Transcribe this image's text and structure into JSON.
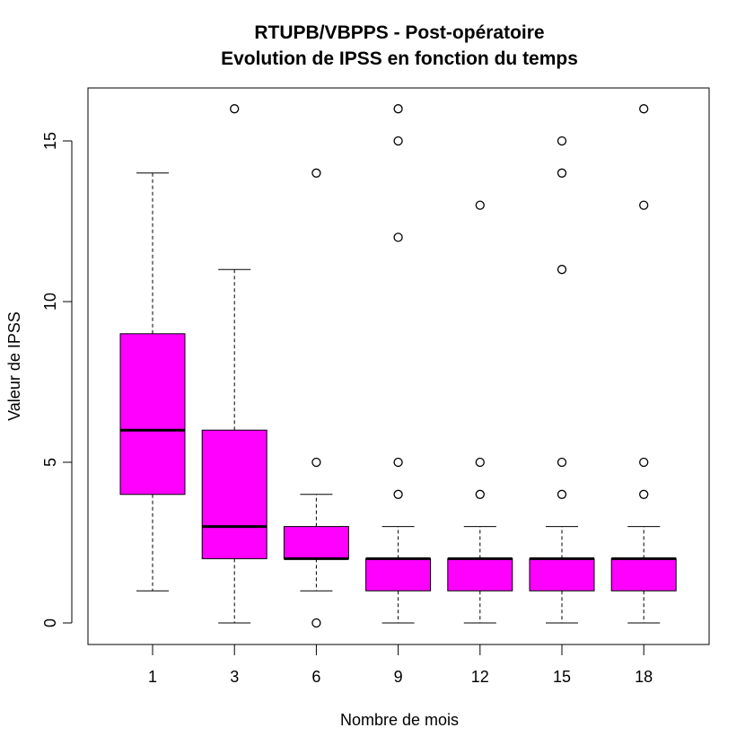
{
  "chart_data": {
    "type": "box",
    "title_line1": "RTUPB/VBPPS - Post-opératoire",
    "title_line2": "Evolution de IPSS en fonction du temps",
    "xlabel": "Nombre de mois",
    "ylabel": "Valeur de IPSS",
    "ylim": [
      -1.3,
      16.6
    ],
    "yticks": [
      0,
      5,
      10,
      15
    ],
    "box_color": "#ff00ff",
    "grid": false,
    "categories": [
      "1",
      "3",
      "6",
      "9",
      "12",
      "15",
      "18"
    ],
    "boxes": [
      {
        "category": "1",
        "whisker_low": 1,
        "q1": 4,
        "median": 6,
        "q3": 9,
        "whisker_high": 14,
        "outliers": []
      },
      {
        "category": "3",
        "whisker_low": 0,
        "q1": 2,
        "median": 3,
        "q3": 6,
        "whisker_high": 11,
        "outliers": [
          16
        ]
      },
      {
        "category": "6",
        "whisker_low": 1,
        "q1": 2,
        "median": 2,
        "q3": 3,
        "whisker_high": 4,
        "outliers": [
          0,
          5,
          14
        ]
      },
      {
        "category": "9",
        "whisker_low": 0,
        "q1": 1,
        "median": 2,
        "q3": 2,
        "whisker_high": 3,
        "outliers": [
          4,
          5,
          12,
          15,
          16
        ]
      },
      {
        "category": "12",
        "whisker_low": 0,
        "q1": 1,
        "median": 2,
        "q3": 2,
        "whisker_high": 3,
        "outliers": [
          4,
          5,
          13
        ]
      },
      {
        "category": "15",
        "whisker_low": 0,
        "q1": 1,
        "median": 2,
        "q3": 2,
        "whisker_high": 3,
        "outliers": [
          4,
          5,
          11,
          14,
          15
        ]
      },
      {
        "category": "18",
        "whisker_low": 0,
        "q1": 1,
        "median": 2,
        "q3": 2,
        "whisker_high": 3,
        "outliers": [
          4,
          5,
          13,
          16
        ]
      }
    ]
  }
}
